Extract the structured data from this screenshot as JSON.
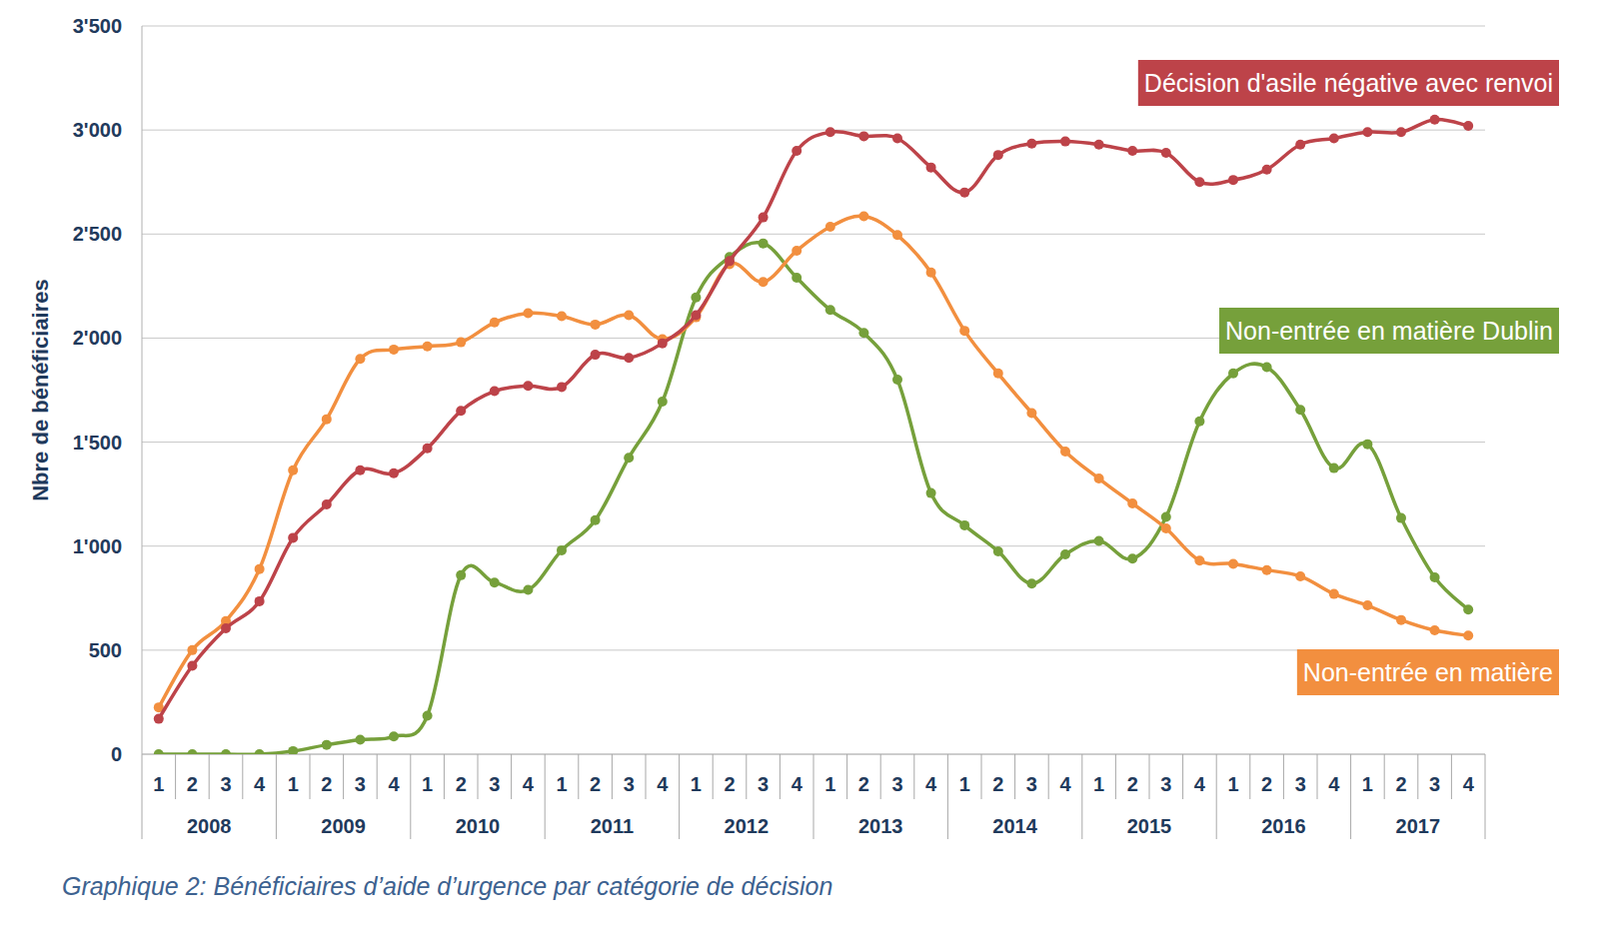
{
  "chart_data": {
    "type": "line",
    "title": "Graphique 2: Bénéficiaires d’aide d’urgence par catégorie de décision",
    "y_label": "Nbre de bénéficiaires",
    "categories": [
      "1",
      "2",
      "3",
      "4",
      "1",
      "2",
      "3",
      "4",
      "1",
      "2",
      "3",
      "4",
      "1",
      "2",
      "3",
      "4",
      "1",
      "2",
      "3",
      "4",
      "1",
      "2",
      "3",
      "4",
      "1",
      "2",
      "3",
      "4",
      "1",
      "2",
      "3",
      "4",
      "1",
      "2",
      "3",
      "4",
      "1",
      "2",
      "3",
      "4"
    ],
    "x_groups": [
      "2008",
      "2009",
      "2010",
      "2011",
      "2012",
      "2013",
      "2014",
      "2015",
      "2016",
      "2017"
    ],
    "ylim": [
      0,
      3500
    ],
    "yticks": [
      0,
      500,
      {
        "value": 1000,
        "label": "1'000"
      },
      {
        "value": 1500,
        "label": "1'500"
      },
      {
        "value": 2000,
        "label": "2'000"
      },
      {
        "value": 2500,
        "label": "2'500"
      },
      {
        "value": 3000,
        "label": "3'000"
      },
      {
        "value": 3500,
        "label": "3'500"
      }
    ],
    "grid": true,
    "marker": "circle",
    "series": [
      {
        "name": "Décision d'asile négative avec renvoi",
        "color": "#bd4349",
        "values": [
          170,
          425,
          605,
          735,
          1040,
          1200,
          1365,
          1350,
          1470,
          1650,
          1745,
          1770,
          1765,
          1920,
          1905,
          1975,
          2110,
          2370,
          2580,
          2900,
          2990,
          2970,
          2960,
          2820,
          2700,
          2880,
          2935,
          2945,
          2930,
          2900,
          2890,
          2750,
          2760,
          2810,
          2930,
          2960,
          2990,
          2990,
          3050,
          3020
        ]
      },
      {
        "name": "Non-entrée en matière Dublin",
        "color": "#76a03b",
        "values": [
          0,
          0,
          0,
          0,
          15,
          45,
          70,
          85,
          185,
          860,
          825,
          790,
          980,
          1125,
          1425,
          1695,
          2195,
          2390,
          2455,
          2290,
          2135,
          2025,
          1800,
          1255,
          1100,
          975,
          820,
          960,
          1025,
          940,
          1140,
          1600,
          1830,
          1860,
          1655,
          1375,
          1490,
          1135,
          850,
          695
        ]
      },
      {
        "name": "Non-entrée en matière",
        "color": "#f28f3f",
        "values": [
          225,
          500,
          640,
          890,
          1365,
          1610,
          1900,
          1945,
          1960,
          1980,
          2075,
          2120,
          2105,
          2065,
          2110,
          1995,
          2100,
          2355,
          2270,
          2420,
          2535,
          2585,
          2495,
          2315,
          2035,
          1830,
          1640,
          1455,
          1325,
          1205,
          1085,
          930,
          915,
          885,
          855,
          770,
          715,
          645,
          595,
          570
        ]
      }
    ]
  }
}
